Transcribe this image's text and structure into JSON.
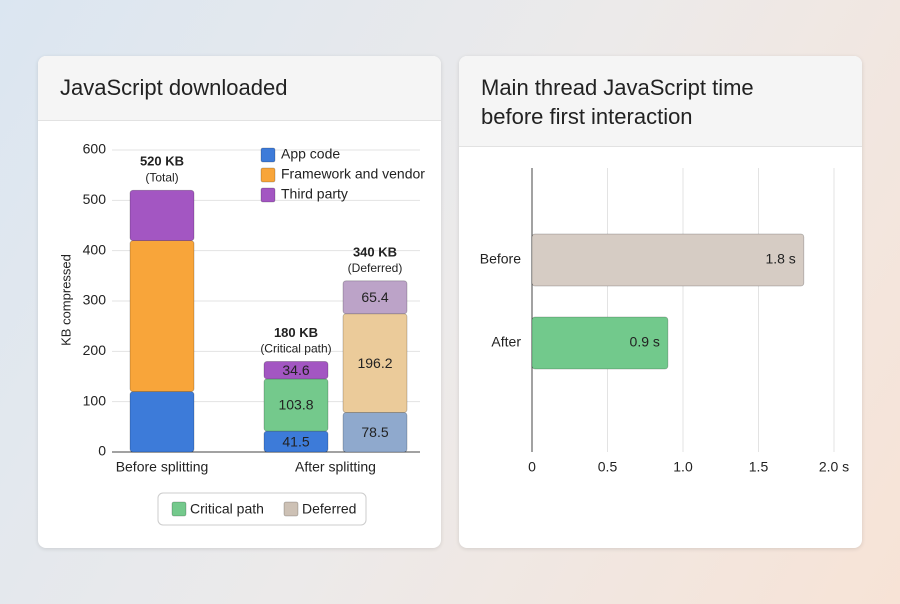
{
  "chart_data": [
    {
      "type": "stacked_bar",
      "title": "JavaScript downloaded",
      "y_label": "KB compressed",
      "categories": [
        "Before splitting",
        "After splitting",
        null
      ],
      "series": [
        {
          "name": "App code",
          "color": "#3d7bd9",
          "colors": [
            "#3d7bd9",
            "#3d7bd9",
            "#8fa9cd"
          ],
          "values": [
            120,
            41.5,
            78.5
          ],
          "value_labels": [
            null,
            "41.5",
            "78.5"
          ]
        },
        {
          "name": "Framework and vendor",
          "color": "#f8a53a",
          "colors": [
            "#f8a53a",
            "#74c98c",
            "#ebcb9a"
          ],
          "values": [
            300,
            103.8,
            196.2
          ],
          "value_labels": [
            null,
            "103.8",
            "196.2"
          ]
        },
        {
          "name": "Third party",
          "color": "#a356c2",
          "colors": [
            "#a356c2",
            "#a356c2",
            "#bca3c8"
          ],
          "values": [
            100,
            34.6,
            65.4
          ],
          "value_labels": [
            null,
            "34.6",
            "65.4"
          ]
        }
      ],
      "stack_labels": [
        [
          "520 KB",
          "(Total)"
        ],
        [
          "180 KB",
          "(Critical path)"
        ],
        [
          "340 KB",
          "(Deferred)"
        ]
      ],
      "ylim": [
        0,
        600
      ],
      "yticks": [
        0,
        100,
        200,
        300,
        400,
        500,
        600
      ],
      "grid": true,
      "legend": "top-right",
      "stack_legend": [
        {
          "name": "Critical path",
          "color": "#74c98c"
        },
        {
          "name": "Deferred",
          "color": "#cdc1b5"
        }
      ]
    },
    {
      "type": "bar",
      "orientation": "horizontal",
      "title": [
        "Main thread JavaScript time",
        "before first interaction"
      ],
      "categories": [
        "Before",
        "After"
      ],
      "values": [
        1.8,
        0.9
      ],
      "value_labels": [
        "1.8 s",
        "0.9 s"
      ],
      "colors": [
        "#d6ccc4",
        "#72c98c"
      ],
      "xlim": [
        0,
        2
      ],
      "xticks": [
        0,
        0.5,
        {
          "value": 1,
          "label": "1.0"
        },
        1.5,
        {
          "value": 2,
          "label": "2.0 s"
        }
      ],
      "grid": true
    }
  ]
}
